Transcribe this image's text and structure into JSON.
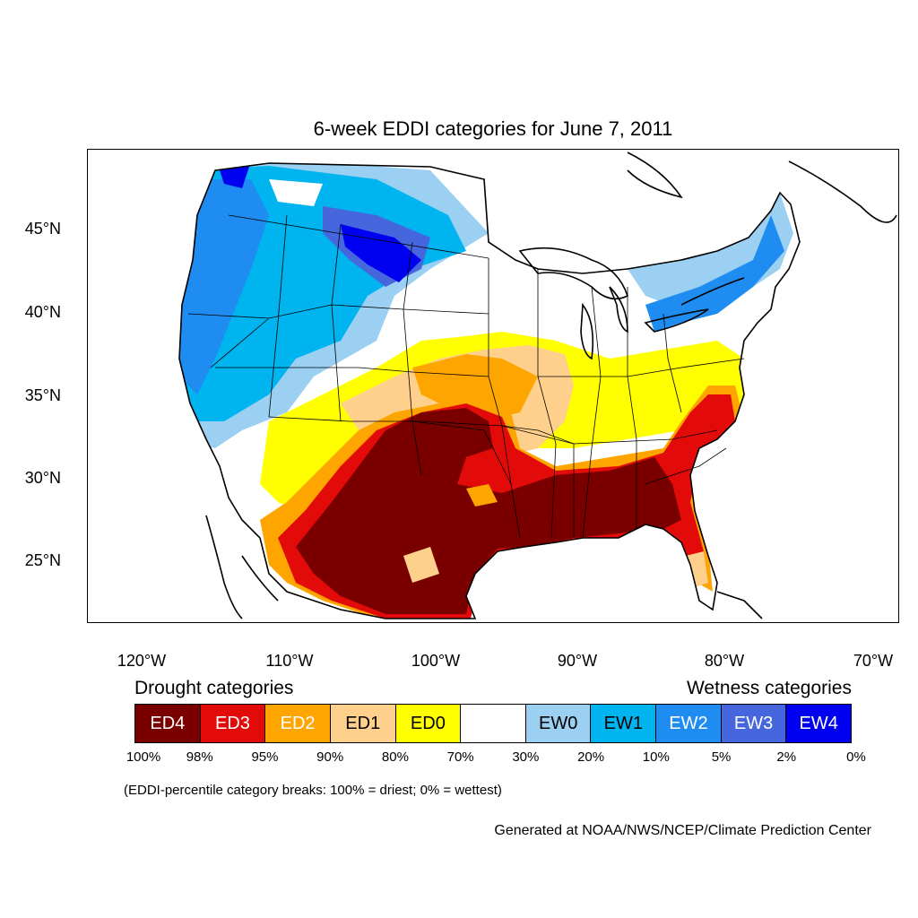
{
  "title": "6-week EDDI categories for June 7, 2011",
  "map": {
    "lat_ticks": [
      "45°N",
      "40°N",
      "35°N",
      "30°N",
      "25°N"
    ],
    "lon_ticks": [
      "120°W",
      "110°W",
      "100°W",
      "90°W",
      "80°W",
      "70°W"
    ]
  },
  "legend": {
    "drought_heading": "Drought categories",
    "wetness_heading": "Wetness categories",
    "categories": [
      {
        "label": "ED4",
        "color": "#7a0000",
        "text_color": "#ffffff"
      },
      {
        "label": "ED3",
        "color": "#e30a0a",
        "text_color": "#ffffff"
      },
      {
        "label": "ED2",
        "color": "#ffa500",
        "text_color": "#ffffff"
      },
      {
        "label": "ED1",
        "color": "#ffd08c",
        "text_color": "#000000"
      },
      {
        "label": "ED0",
        "color": "#ffff00",
        "text_color": "#000000"
      },
      {
        "label": "",
        "color": "#ffffff",
        "text_color": "#000000"
      },
      {
        "label": "EW0",
        "color": "#9bd0f2",
        "text_color": "#000000"
      },
      {
        "label": "EW1",
        "color": "#00b4f0",
        "text_color": "#000000"
      },
      {
        "label": "EW2",
        "color": "#1e8cf0",
        "text_color": "#ffffff"
      },
      {
        "label": "EW3",
        "color": "#4666de",
        "text_color": "#ffffff"
      },
      {
        "label": "EW4",
        "color": "#0000f0",
        "text_color": "#ffffff"
      }
    ],
    "breaks": [
      "100%",
      "98%",
      "95%",
      "90%",
      "80%",
      "70%",
      "30%",
      "20%",
      "10%",
      "5%",
      "2%",
      "0%"
    ]
  },
  "note": "(EDDI-percentile category breaks: 100% = driest; 0% = wettest)",
  "credit": "Generated at NOAA/NWS/NCEP/Climate Prediction Center"
}
